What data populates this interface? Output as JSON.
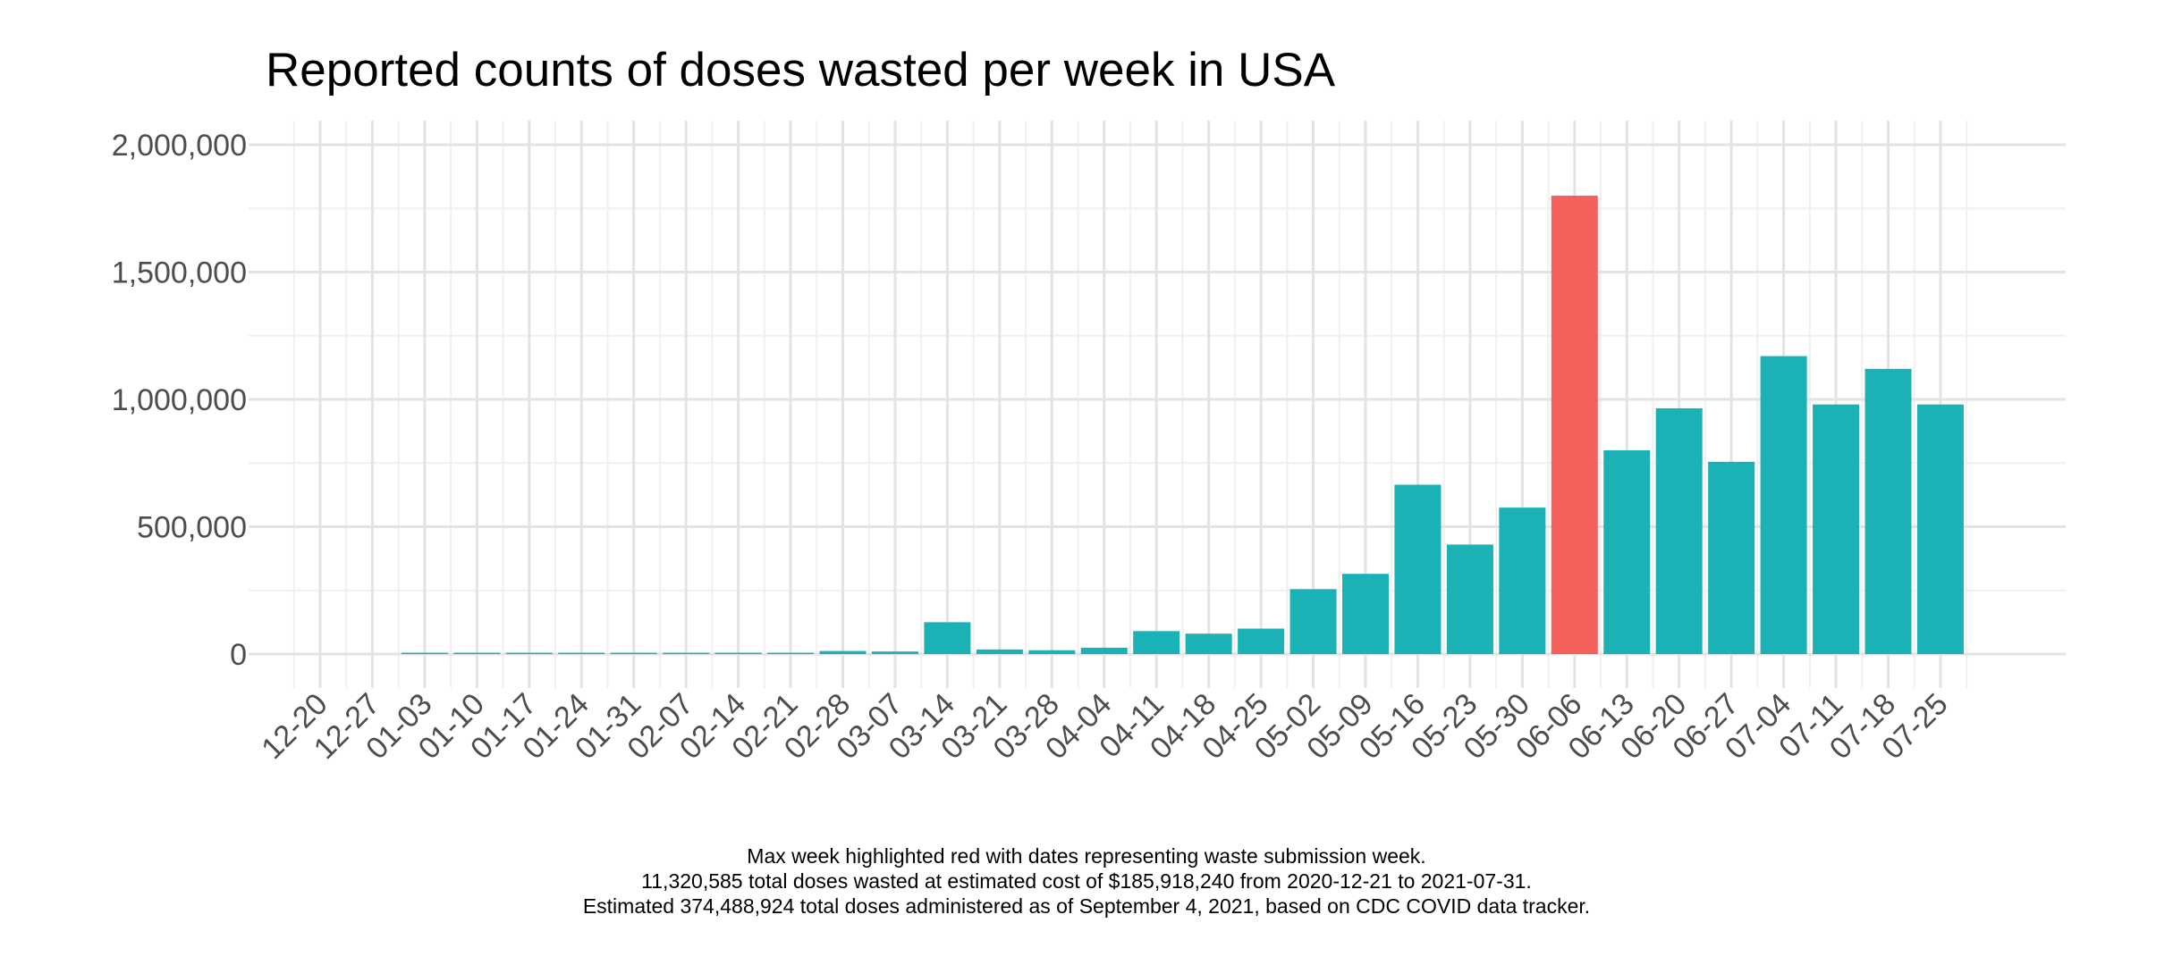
{
  "chart_data": {
    "type": "bar",
    "title": "Reported counts of doses wasted per week in USA",
    "xlabel": "",
    "ylabel": "",
    "ylim": [
      0,
      2000000
    ],
    "y_ticks": [
      0,
      500000,
      1000000,
      1500000,
      2000000
    ],
    "y_tick_labels": [
      "0",
      "500,000",
      "1,000,000",
      "1,500,000",
      "2,000,000"
    ],
    "grid": true,
    "legend": "none",
    "categories": [
      "12-20",
      "12-27",
      "01-03",
      "01-10",
      "01-17",
      "01-24",
      "01-31",
      "02-07",
      "02-14",
      "02-21",
      "02-28",
      "03-07",
      "03-14",
      "03-21",
      "03-28",
      "04-04",
      "04-11",
      "04-18",
      "04-25",
      "05-02",
      "05-09",
      "05-16",
      "05-23",
      "05-30",
      "06-06",
      "06-13",
      "06-20",
      "06-27",
      "07-04",
      "07-11",
      "07-18",
      "07-25"
    ],
    "values": [
      0,
      0,
      4000,
      4000,
      3000,
      5000,
      4000,
      4000,
      4000,
      5000,
      12000,
      10000,
      125000,
      18000,
      15000,
      25000,
      90000,
      80000,
      100000,
      255000,
      315000,
      665000,
      430000,
      575000,
      1800000,
      800000,
      965000,
      755000,
      1170000,
      980000,
      1120000,
      980000
    ],
    "highlight_index": 24,
    "colors": {
      "bar": "#1AB2B5",
      "highlight": "#F4605C",
      "grid_major": "#E3E3E3",
      "grid_minor": "#F0F0F0"
    },
    "caption": [
      "Max week highlighted red with dates representing waste submission week.",
      "11,320,585 total doses wasted at estimated cost of $185,918,240 from 2020-12-21 to 2021-07-31.",
      "Estimated 374,488,924 total doses administered as of September 4, 2021, based on CDC COVID data tracker."
    ]
  }
}
